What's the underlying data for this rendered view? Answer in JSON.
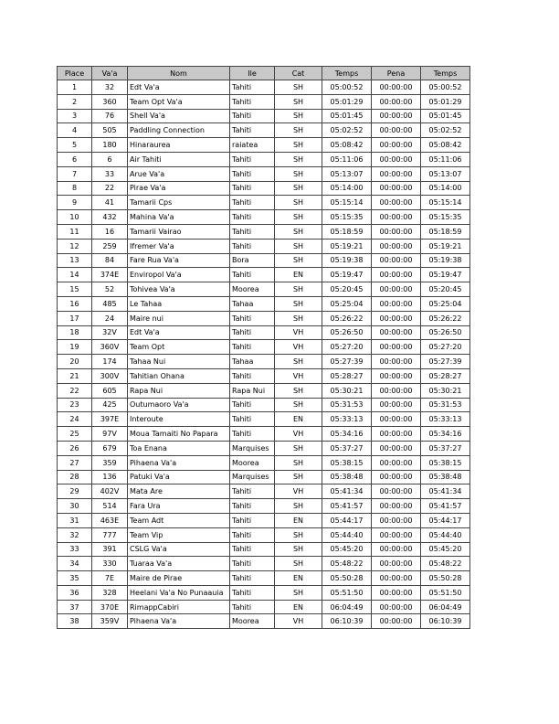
{
  "table": {
    "header": [
      "Place",
      "Va'a",
      "Nom",
      "Ile",
      "Cat",
      "Temps",
      "Pena",
      "Temps"
    ],
    "rows": [
      [
        "1",
        "32",
        "Edt Va'a",
        "Tahiti",
        "SH",
        "05:00:52",
        "00:00:00",
        "05:00:52"
      ],
      [
        "2",
        "360",
        "Team Opt Va'a",
        "Tahiti",
        "SH",
        "05:01:29",
        "00:00:00",
        "05:01:29"
      ],
      [
        "3",
        "76",
        "Shell Va'a",
        "Tahiti",
        "SH",
        "05:01:45",
        "00:00:00",
        "05:01:45"
      ],
      [
        "4",
        "505",
        "Paddling Connection",
        "Tahiti",
        "SH",
        "05:02:52",
        "00:00:00",
        "05:02:52"
      ],
      [
        "5",
        "180",
        "Hinaraurea",
        "raiatea",
        "SH",
        "05:08:42",
        "00:00:00",
        "05:08:42"
      ],
      [
        "6",
        "6",
        "Air Tahiti",
        "Tahiti",
        "SH",
        "05:11:06",
        "00:00:00",
        "05:11:06"
      ],
      [
        "7",
        "33",
        "Arue Va'a",
        "Tahiti",
        "SH",
        "05:13:07",
        "00:00:00",
        "05:13:07"
      ],
      [
        "8",
        "22",
        "Pirae Va'a",
        "Tahiti",
        "SH",
        "05:14:00",
        "00:00:00",
        "05:14:00"
      ],
      [
        "9",
        "41",
        "Tamarii Cps",
        "Tahiti",
        "SH",
        "05:15:14",
        "00:00:00",
        "05:15:14"
      ],
      [
        "10",
        "432",
        "Mahina Va'a",
        "Tahiti",
        "SH",
        "05:15:35",
        "00:00:00",
        "05:15:35"
      ],
      [
        "11",
        "16",
        "Tamarii Vairao",
        "Tahiti",
        "SH",
        "05:18:59",
        "00:00:00",
        "05:18:59"
      ],
      [
        "12",
        "259",
        "Ifremer Va'a",
        "Tahiti",
        "SH",
        "05:19:21",
        "00:00:00",
        "05:19:21"
      ],
      [
        "13",
        "84",
        "Fare Rua Va'a",
        "Bora",
        "SH",
        "05:19:38",
        "00:00:00",
        "05:19:38"
      ],
      [
        "14",
        "374E",
        "Enviropol Va'a",
        "Tahiti",
        "EN",
        "05:19:47",
        "00:00:00",
        "05:19:47"
      ],
      [
        "15",
        "52",
        "Tohivea Va'a",
        "Moorea",
        "SH",
        "05:20:45",
        "00:00:00",
        "05:20:45"
      ],
      [
        "16",
        "485",
        "Le Tahaa",
        "Tahaa",
        "SH",
        "05:25:04",
        "00:00:00",
        "05:25:04"
      ],
      [
        "17",
        "24",
        "Maire nui",
        "Tahiti",
        "SH",
        "05:26:22",
        "00:00:00",
        "05:26:22"
      ],
      [
        "18",
        "32V",
        "Edt Va'a",
        "Tahiti",
        "VH",
        "05:26:50",
        "00:00:00",
        "05:26:50"
      ],
      [
        "19",
        "360V",
        "Team Opt",
        "Tahiti",
        "VH",
        "05:27:20",
        "00:00:00",
        "05:27:20"
      ],
      [
        "20",
        "174",
        "Tahaa Nui",
        "Tahaa",
        "SH",
        "05:27:39",
        "00:00:00",
        "05:27:39"
      ],
      [
        "21",
        "300V",
        "Tahitian Ohana",
        "Tahiti",
        "VH",
        "05:28:27",
        "00:00:00",
        "05:28:27"
      ],
      [
        "22",
        "605",
        "Rapa Nui",
        "Rapa Nui",
        "SH",
        "05:30:21",
        "00:00:00",
        "05:30:21"
      ],
      [
        "23",
        "425",
        "Outumaoro Va'a",
        "Tahiti",
        "SH",
        "05:31:53",
        "00:00:00",
        "05:31:53"
      ],
      [
        "24",
        "397E",
        "Interoute",
        "Tahiti",
        "EN",
        "05:33:13",
        "00:00:00",
        "05:33:13"
      ],
      [
        "25",
        "97V",
        "Moua Tamaiti No Papara",
        "Tahiti",
        "VH",
        "05:34:16",
        "00:00:00",
        "05:34:16"
      ],
      [
        "26",
        "679",
        "Toa Enana",
        "Marquises",
        "SH",
        "05:37:27",
        "00:00:00",
        "05:37:27"
      ],
      [
        "27",
        "359",
        "Pihaena Va'a",
        "Moorea",
        "SH",
        "05:38:15",
        "00:00:00",
        "05:38:15"
      ],
      [
        "28",
        "136",
        "Patuki Va'a",
        "Marquises",
        "SH",
        "05:38:48",
        "00:00:00",
        "05:38:48"
      ],
      [
        "29",
        "402V",
        "Mata Are",
        "Tahiti",
        "VH",
        "05:41:34",
        "00:00:00",
        "05:41:34"
      ],
      [
        "30",
        "514",
        "Fara Ura",
        "Tahiti",
        "SH",
        "05:41:57",
        "00:00:00",
        "05:41:57"
      ],
      [
        "31",
        "463E",
        "Team Adt",
        "Tahiti",
        "EN",
        "05:44:17",
        "00:00:00",
        "05:44:17"
      ],
      [
        "32",
        "777",
        "Team Vip",
        "Tahiti",
        "SH",
        "05:44:40",
        "00:00:00",
        "05:44:40"
      ],
      [
        "33",
        "391",
        "CSLG Va'a",
        "Tahiti",
        "SH",
        "05:45:20",
        "00:00:00",
        "05:45:20"
      ],
      [
        "34",
        "330",
        "Tuaraa Va'a",
        "Tahiti",
        "SH",
        "05:48:22",
        "00:00:00",
        "05:48:22"
      ],
      [
        "35",
        "7E",
        "Maire de Pirae",
        "Tahiti",
        "EN",
        "05:50:28",
        "00:00:00",
        "05:50:28"
      ],
      [
        "36",
        "328",
        "Heelani Va'a No Punaauia",
        "Tahiti",
        "SH",
        "05:51:50",
        "00:00:00",
        "05:51:50"
      ],
      [
        "37",
        "370E",
        "RimappCabiri",
        "Tahiti",
        "EN",
        "06:04:49",
        "00:00:00",
        "06:04:49"
      ],
      [
        "38",
        "359V",
        "Pihaena Va'a",
        "Moorea",
        "VH",
        "06:10:39",
        "00:00:00",
        "06:10:39"
      ]
    ]
  }
}
